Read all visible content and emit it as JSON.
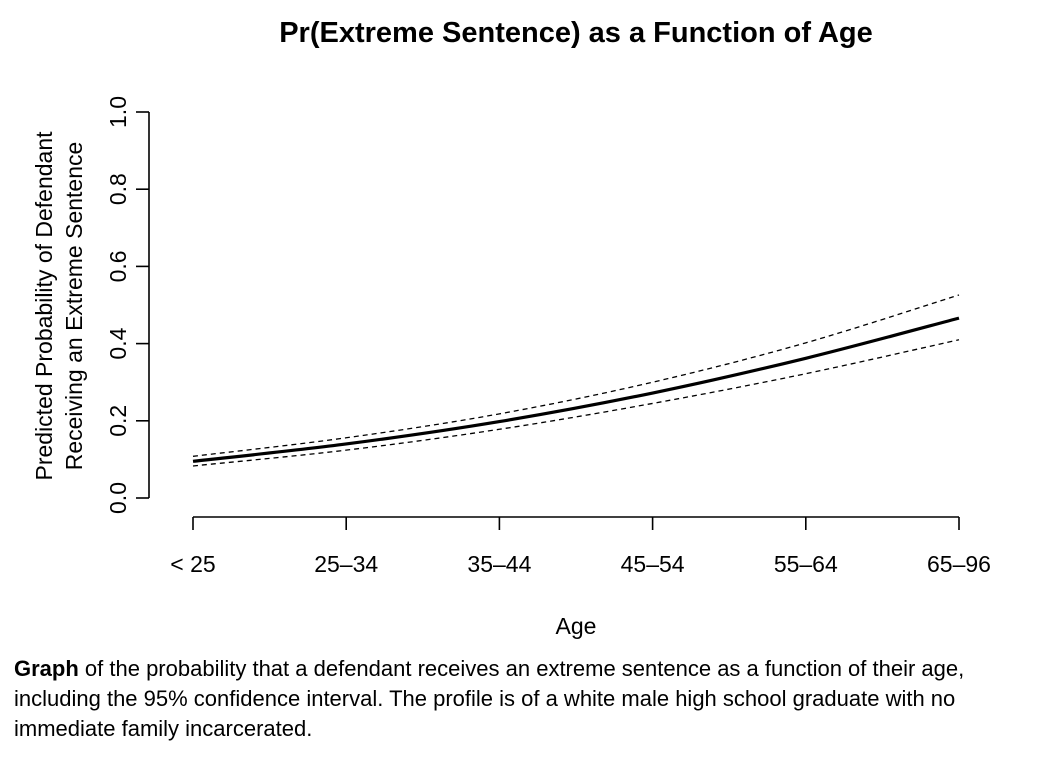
{
  "chart_data": {
    "type": "line",
    "title": "Pr(Extreme Sentence) as a Function of Age",
    "xlabel": "Age",
    "ylabel_lines": [
      "Predicted Probability of Defendant",
      "Receiving an Extreme Sentence"
    ],
    "categories": [
      "< 25",
      "25–34",
      "35–44",
      "45–54",
      "55–64",
      "65–96"
    ],
    "ylim": [
      0,
      1
    ],
    "yticks": [
      0.0,
      0.2,
      0.4,
      0.6,
      0.8,
      1.0
    ],
    "ytick_labels": [
      "0.0",
      "0.2",
      "0.4",
      "0.6",
      "0.8",
      "1.0"
    ],
    "grid": false,
    "series": [
      {
        "role": "estimate",
        "style": "solid",
        "values": [
          0.095,
          0.14,
          0.198,
          0.272,
          0.362,
          0.466
        ]
      },
      {
        "role": "upper-95-ci",
        "style": "dashed",
        "values": [
          0.108,
          0.156,
          0.218,
          0.3,
          0.402,
          0.526
        ]
      },
      {
        "role": "lower-95-ci",
        "style": "dashed",
        "values": [
          0.083,
          0.124,
          0.178,
          0.245,
          0.322,
          0.41
        ]
      }
    ]
  },
  "caption": {
    "bold": "Graph",
    "text": " of the probability that a defendant receives an extreme sentence as a function of their age, including the 95% confidence interval. The profile is of a white male high school graduate with no immediate family incarcerated."
  }
}
